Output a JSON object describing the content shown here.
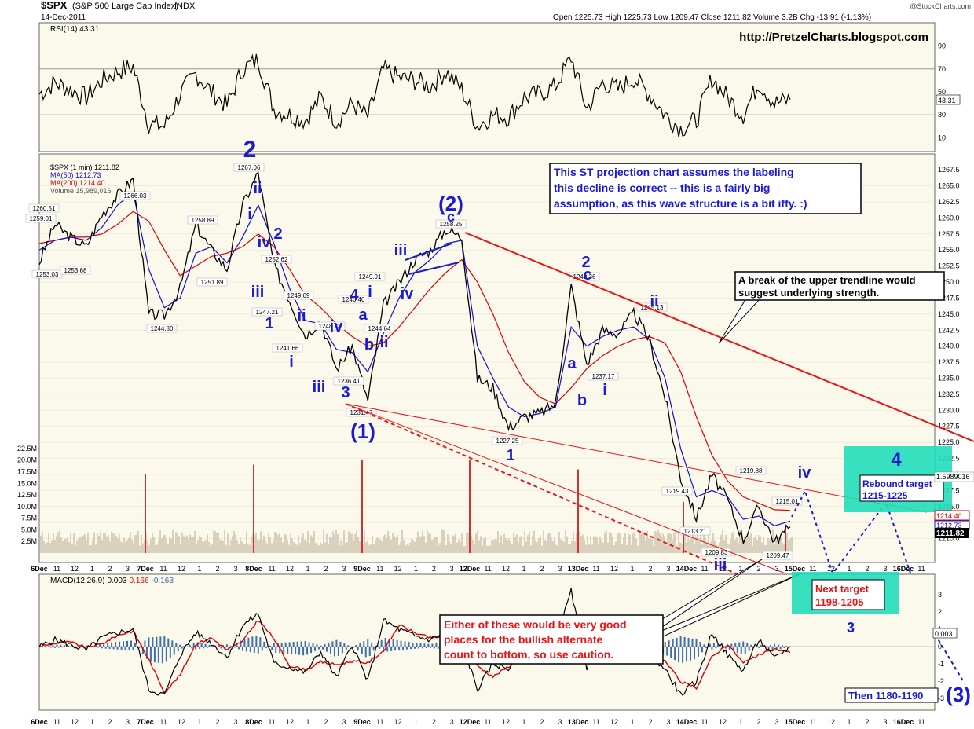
{
  "header": {
    "symbol": "$SPX",
    "name": "(S&P 500 Large Cap Index)",
    "exchange": "INDX",
    "date": "14-Dec-2011",
    "ohlc": "Open 1225.73  High 1225.73  Low 1209.47  Close 1211.82  Volume 3.2B  Chg -13.91 (-1.13%)",
    "copyright": "@StockCharts.com",
    "site": "http://PretzelCharts.blogspot.com"
  },
  "rsi": {
    "label": "RSI(14) 43.31",
    "last_value": "43.31",
    "ticks": [
      "90",
      "70",
      "50",
      "30",
      "10"
    ],
    "ylim": [
      0,
      100
    ],
    "levels": [
      70,
      30
    ]
  },
  "price_panel": {
    "legend": [
      "$SPX (1 min) 1211.82",
      "MA(50) 1212.73",
      "MA(200) 1214.40",
      "Volume 15,989,016"
    ],
    "ticks": [
      "1267.5",
      "1265.0",
      "1262.5",
      "1260.0",
      "1257.5",
      "1255.0",
      "1252.5",
      "1250.0",
      "1247.5",
      "1245.0",
      "1242.5",
      "1240.0",
      "1237.5",
      "1235.0",
      "1232.5",
      "1230.0",
      "1227.5",
      "1225.0",
      "1222.5",
      "1220.0",
      "1217.5",
      "1215.0",
      "1212.5",
      "1210.0"
    ],
    "volume_ticks": [
      "22.5M",
      "20.0M",
      "17.5M",
      "15.0M",
      "12.5M",
      "10.0M",
      "7.5M",
      "5.0M",
      "2.5M"
    ],
    "value_tags": [
      "1214.40",
      "1212.73",
      "1211.82"
    ],
    "partial_tag": "1.5989016",
    "ylim": [
      1207.5,
      1268.5
    ]
  },
  "macd": {
    "label": "MACD(12,26,9) 0.003, 0.166, -0.163",
    "label_parts": [
      "MACD(12,26,9)",
      "0.003",
      "0.166",
      "-0.163"
    ],
    "last_value": "0.003",
    "ticks": [
      "3",
      "2",
      "1",
      "0",
      "-1",
      "-2",
      "-3"
    ],
    "ylim": [
      -3.5,
      3.5
    ]
  },
  "time_axis": [
    "6Dec",
    "11",
    "12",
    "1",
    "2",
    "3",
    "7Dec",
    "11",
    "12",
    "1",
    "2",
    "3",
    "8Dec",
    "11",
    "12",
    "1",
    "2",
    "3",
    "9Dec",
    "11",
    "12",
    "1",
    "2",
    "3",
    "12Dec",
    "11",
    "12",
    "1",
    "2",
    "3",
    "13Dec",
    "11",
    "12",
    "1",
    "2",
    "3",
    "14Dec",
    "11",
    "12",
    "1",
    "2",
    "3",
    "15Dec",
    "11",
    "12",
    "1",
    "2",
    "3",
    "16Dec",
    "11"
  ],
  "chart_data": {
    "type": "line",
    "title": "$SPX (S&P 500 Large Cap Index) INDX",
    "xlabel": "",
    "ylabel": "",
    "ylim": [
      1207.5,
      1268.5
    ],
    "x": [
      "6Dec 9:30",
      "6Dec 10:00",
      "6Dec 11:00",
      "6Dec 12:00",
      "6Dec 13:00",
      "6Dec 14:00",
      "6Dec 15:00",
      "7Dec 9:30",
      "7Dec 10:00",
      "7Dec 11:00",
      "7Dec 12:00",
      "7Dec 13:00",
      "7Dec 14:00",
      "7Dec 15:00",
      "8Dec 9:30",
      "8Dec 10:00",
      "8Dec 11:00",
      "8Dec 12:00",
      "8Dec 13:00",
      "8Dec 14:00",
      "8Dec 15:00",
      "9Dec 9:30",
      "9Dec 10:00",
      "9Dec 11:00",
      "9Dec 12:00",
      "9Dec 13:00",
      "9Dec 14:00",
      "9Dec 15:00",
      "12Dec 9:30",
      "12Dec 10:00",
      "12Dec 11:00",
      "12Dec 12:00",
      "12Dec 13:00",
      "12Dec 14:00",
      "12Dec 15:00",
      "13Dec 9:30",
      "13Dec 10:00",
      "13Dec 11:00",
      "13Dec 12:00",
      "13Dec 13:00",
      "13Dec 14:00",
      "13Dec 15:00",
      "14Dec 9:30",
      "14Dec 10:00",
      "14Dec 11:00",
      "14Dec 12:00",
      "14Dec 13:00",
      "14Dec 14:00",
      "14Dec 15:00"
    ],
    "series": [
      {
        "name": "$SPX (1 min)",
        "values": [
          1253.03,
          1259.01,
          1257.0,
          1255.5,
          1260.51,
          1263.5,
          1266.03,
          1245.0,
          1244.8,
          1249.0,
          1258.89,
          1255.0,
          1252.0,
          1262.0,
          1267.06,
          1252.62,
          1247.21,
          1241.66,
          1244.0,
          1236.41,
          1240.0,
          1231.47,
          1246.4,
          1249.91,
          1253.5,
          1255.0,
          1258.25,
          1257.0,
          1235.0,
          1233.5,
          1227.25,
          1229.0,
          1229.5,
          1231.0,
          1249.36,
          1237.17,
          1242.5,
          1242.0,
          1245.13,
          1241.0,
          1232.0,
          1219.43,
          1213.21,
          1219.88,
          1216.0,
          1209.83,
          1215.01,
          1209.47,
          1211.82
        ]
      },
      {
        "name": "MA(50)",
        "values": [
          1255.0,
          1256.5,
          1257.0,
          1256.5,
          1258.5,
          1262.0,
          1264.0,
          1252.0,
          1246.0,
          1247.5,
          1254.5,
          1255.5,
          1253.0,
          1257.0,
          1262.0,
          1256.0,
          1249.0,
          1244.0,
          1243.5,
          1239.5,
          1239.0,
          1236.0,
          1242.0,
          1247.5,
          1251.5,
          1253.5,
          1256.0,
          1256.5,
          1240.0,
          1235.0,
          1230.5,
          1229.0,
          1229.5,
          1230.5,
          1243.0,
          1240.0,
          1241.5,
          1242.5,
          1243.0,
          1241.0,
          1235.0,
          1224.0,
          1216.5,
          1217.5,
          1216.5,
          1213.0,
          1213.5,
          1212.0,
          1212.73
        ]
      },
      {
        "name": "MA(200)",
        "values": [
          1256.0,
          1256.5,
          1257.0,
          1257.0,
          1257.5,
          1259.0,
          1261.0,
          1259.5,
          1255.0,
          1251.0,
          1252.5,
          1254.0,
          1254.5,
          1255.5,
          1257.5,
          1255.5,
          1252.0,
          1248.0,
          1246.0,
          1243.5,
          1241.5,
          1240.0,
          1240.5,
          1243.0,
          1246.0,
          1249.0,
          1251.5,
          1253.5,
          1250.0,
          1245.0,
          1239.0,
          1234.5,
          1232.0,
          1231.0,
          1233.5,
          1236.5,
          1238.5,
          1240.0,
          1241.0,
          1241.5,
          1240.5,
          1236.0,
          1229.0,
          1223.0,
          1219.0,
          1216.5,
          1215.5,
          1214.5,
          1214.4
        ]
      },
      {
        "name": "RSI(14)",
        "values": [
          48,
          58,
          52,
          45,
          60,
          68,
          72,
          22,
          20,
          48,
          66,
          50,
          38,
          70,
          78,
          35,
          30,
          25,
          45,
          24,
          40,
          28,
          70,
          62,
          60,
          55,
          68,
          52,
          20,
          30,
          28,
          45,
          48,
          55,
          80,
          35,
          58,
          52,
          62,
          48,
          30,
          18,
          25,
          62,
          45,
          30,
          58,
          40,
          43.31
        ]
      },
      {
        "name": "MACD",
        "values": [
          0.0,
          0.4,
          0.1,
          -0.2,
          0.5,
          0.8,
          1.0,
          -2.5,
          -2.8,
          -0.5,
          0.8,
          0.2,
          -0.6,
          1.2,
          1.9,
          -1.0,
          -1.2,
          -1.5,
          -0.3,
          -1.8,
          0.1,
          -2.0,
          1.5,
          1.0,
          0.6,
          0.4,
          0.8,
          0.3,
          -2.5,
          -1.0,
          -1.3,
          0.1,
          0.2,
          0.3,
          3.2,
          -1.2,
          0.3,
          0.1,
          0.5,
          -0.4,
          -1.3,
          -2.8,
          -2.0,
          0.8,
          -0.5,
          -1.4,
          0.4,
          -0.7,
          0.003
        ]
      }
    ],
    "point_labels": [
      "1253.03",
      "1259.01",
      "1260.51",
      "1253.68",
      "1266.03",
      "1244.80",
      "1258.89",
      "1251.89",
      "1267.06",
      "1252.62",
      "1247.21",
      "1249.69",
      "1241.66",
      "1248.33",
      "1236.41",
      "1246.40",
      "1249.91",
      "1244.64",
      "1231.47",
      "1258.25",
      "1227.25",
      "1249.36",
      "1237.17",
      "1245.13",
      "1219.43",
      "1213.21",
      "1219.88",
      "1209.83",
      "1215.01",
      "1209.47"
    ],
    "wave_labels": {
      "blue": [
        "2",
        "ii",
        "i",
        "iv",
        "2",
        "iii",
        "1",
        "i",
        "ii",
        "iii",
        "iv",
        "1",
        "i",
        "iii",
        "3",
        "4",
        "a",
        "b",
        "ii",
        "i",
        "iii",
        "iv",
        "(2)",
        "c",
        "(1)",
        "1",
        "2",
        "c",
        "a",
        "b",
        "i",
        "ii",
        "iii",
        "iv",
        "4"
      ],
      "red": [
        "3",
        "(3)"
      ]
    },
    "annotations": [
      "This ST projection chart assumes the labeling of this decline is correct -- this is a fairly big assumption, as this wave structure is a bit iffy.  :)",
      "A break of the upper trendline would suggest underlying strength.",
      "Either of these would be very good places for the bullish alternate count to bottom, so use caution.",
      "Rebound target 1215-1225",
      "Next target 1198-1205",
      "Then 1180-1190"
    ]
  },
  "colors": {
    "price": "#000000",
    "ma50": "#1111cc",
    "ma200": "#dd0000",
    "volume": "#b8a890",
    "volume_spike": "#cc3333",
    "macd_hist": "#3f6ea8",
    "wave_blue": "#1a1ad6",
    "trend_red": "#ee1111",
    "target_box": "#22ddbb",
    "panel_bg": "#fbf9ec"
  }
}
